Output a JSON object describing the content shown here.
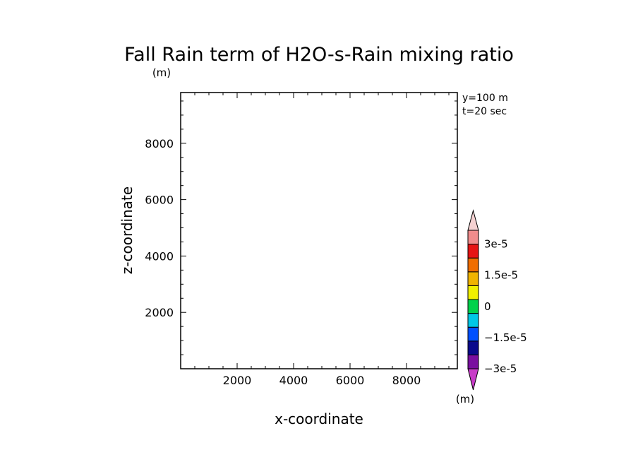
{
  "chart_data": {
    "type": "heatmap",
    "title": "Fall Rain term of H2O-s-Rain mixing ratio",
    "xlabel": "x-coordinate",
    "ylabel": "z-coordinate",
    "y_unit": "(m)",
    "x_unit": "(m)",
    "xlim": [
      0,
      9800
    ],
    "ylim": [
      0,
      9800
    ],
    "x_ticks": [
      2000,
      4000,
      6000,
      8000
    ],
    "y_ticks": [
      2000,
      4000,
      6000,
      8000
    ],
    "x_tick_labels": [
      "2000",
      "4000",
      "6000",
      "8000"
    ],
    "y_tick_labels": [
      "2000",
      "4000",
      "6000",
      "8000"
    ],
    "annotations": [
      "y=100 m",
      "t=20 sec"
    ],
    "data": [],
    "colorbar": {
      "levels": [
        -3e-05,
        -2.25e-05,
        -1.5e-05,
        -7.5e-06,
        0,
        7.5e-06,
        1.5e-05,
        2.25e-05,
        3e-05
      ],
      "colors_bottom_to_top": [
        "#7a0fa0",
        "#0a0a8c",
        "#0050ff",
        "#00c8e6",
        "#00d24b",
        "#f0f000",
        "#f0b400",
        "#f06e00",
        "#e61414",
        "#f08c8c"
      ],
      "under_color": "#c83cc8",
      "over_color": "#f5d2d2",
      "tick_values": [
        3e-05,
        1.5e-05,
        0,
        -1.5e-05,
        -3e-05
      ],
      "tick_labels": [
        "3e-5",
        "1.5e-5",
        "0",
        "−1.5e-5",
        "−3e-5"
      ]
    }
  }
}
